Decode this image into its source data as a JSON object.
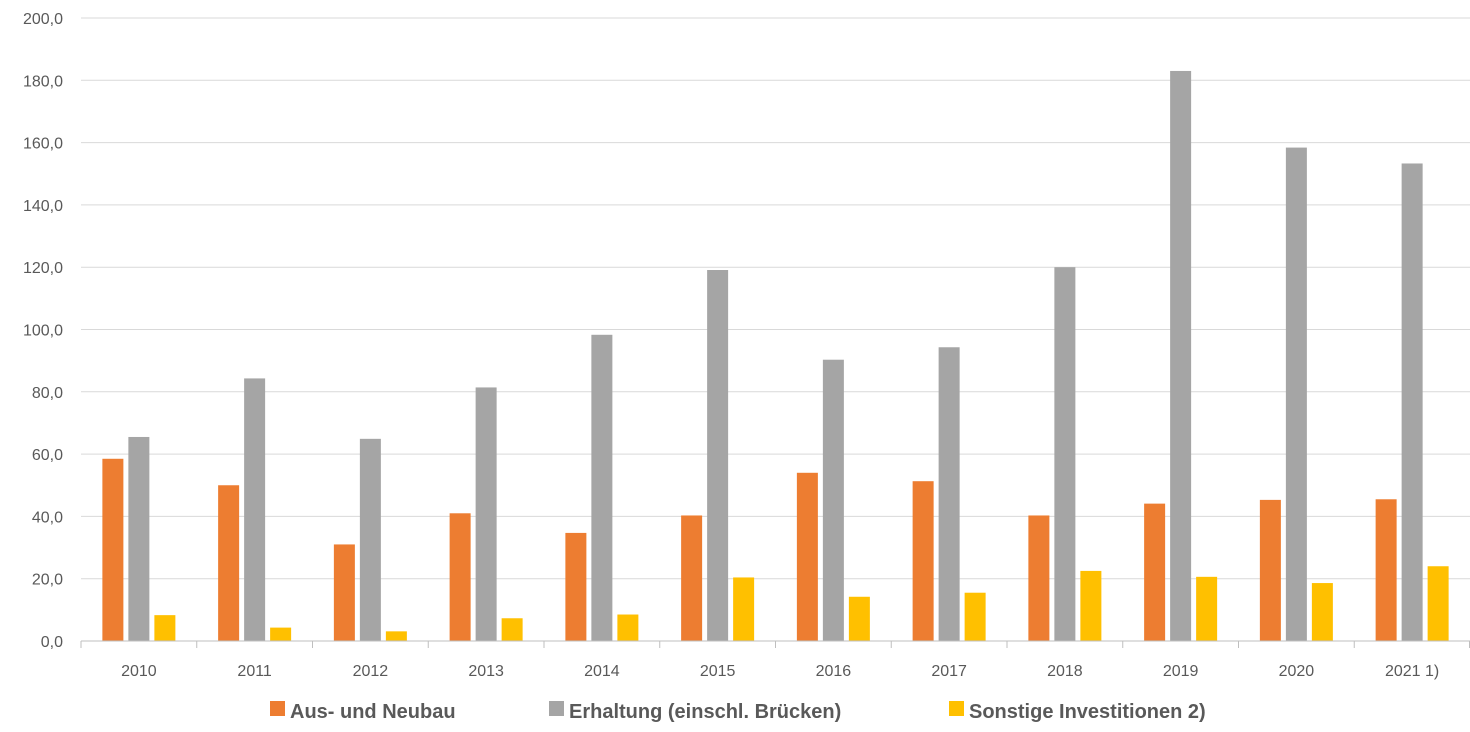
{
  "chart_data": {
    "type": "bar",
    "categories": [
      "2010",
      "2011",
      "2012",
      "2013",
      "2014",
      "2015",
      "2016",
      "2017",
      "2018",
      "2019",
      "2020",
      "2021 1)"
    ],
    "series": [
      {
        "name": "Aus- und Neubau",
        "color": "#ED7D31",
        "values": [
          58.5,
          50.0,
          31.0,
          41.0,
          34.7,
          40.3,
          54.0,
          51.3,
          40.3,
          44.1,
          45.3,
          45.5
        ]
      },
      {
        "name": "Erhaltung (einschl. Brücken)",
        "color": "#A5A5A5",
        "values": [
          65.5,
          84.3,
          64.9,
          81.4,
          98.3,
          119.1,
          90.3,
          94.3,
          120.0,
          183.0,
          158.4,
          153.3
        ]
      },
      {
        "name": "Sonstige Investitionen 2)",
        "color": "#FFC000",
        "values": [
          8.3,
          4.3,
          3.1,
          7.3,
          8.5,
          20.4,
          14.2,
          15.5,
          22.5,
          20.6,
          18.6,
          24.0
        ]
      }
    ],
    "yticks": [
      "0,0",
      "20,0",
      "40,0",
      "60,0",
      "80,0",
      "100,0",
      "120,0",
      "140,0",
      "160,0",
      "180,0",
      "200,0"
    ],
    "ylim": [
      0,
      200
    ],
    "grid": true,
    "legend_position": "bottom",
    "title": "",
    "xlabel": "",
    "ylabel": ""
  }
}
